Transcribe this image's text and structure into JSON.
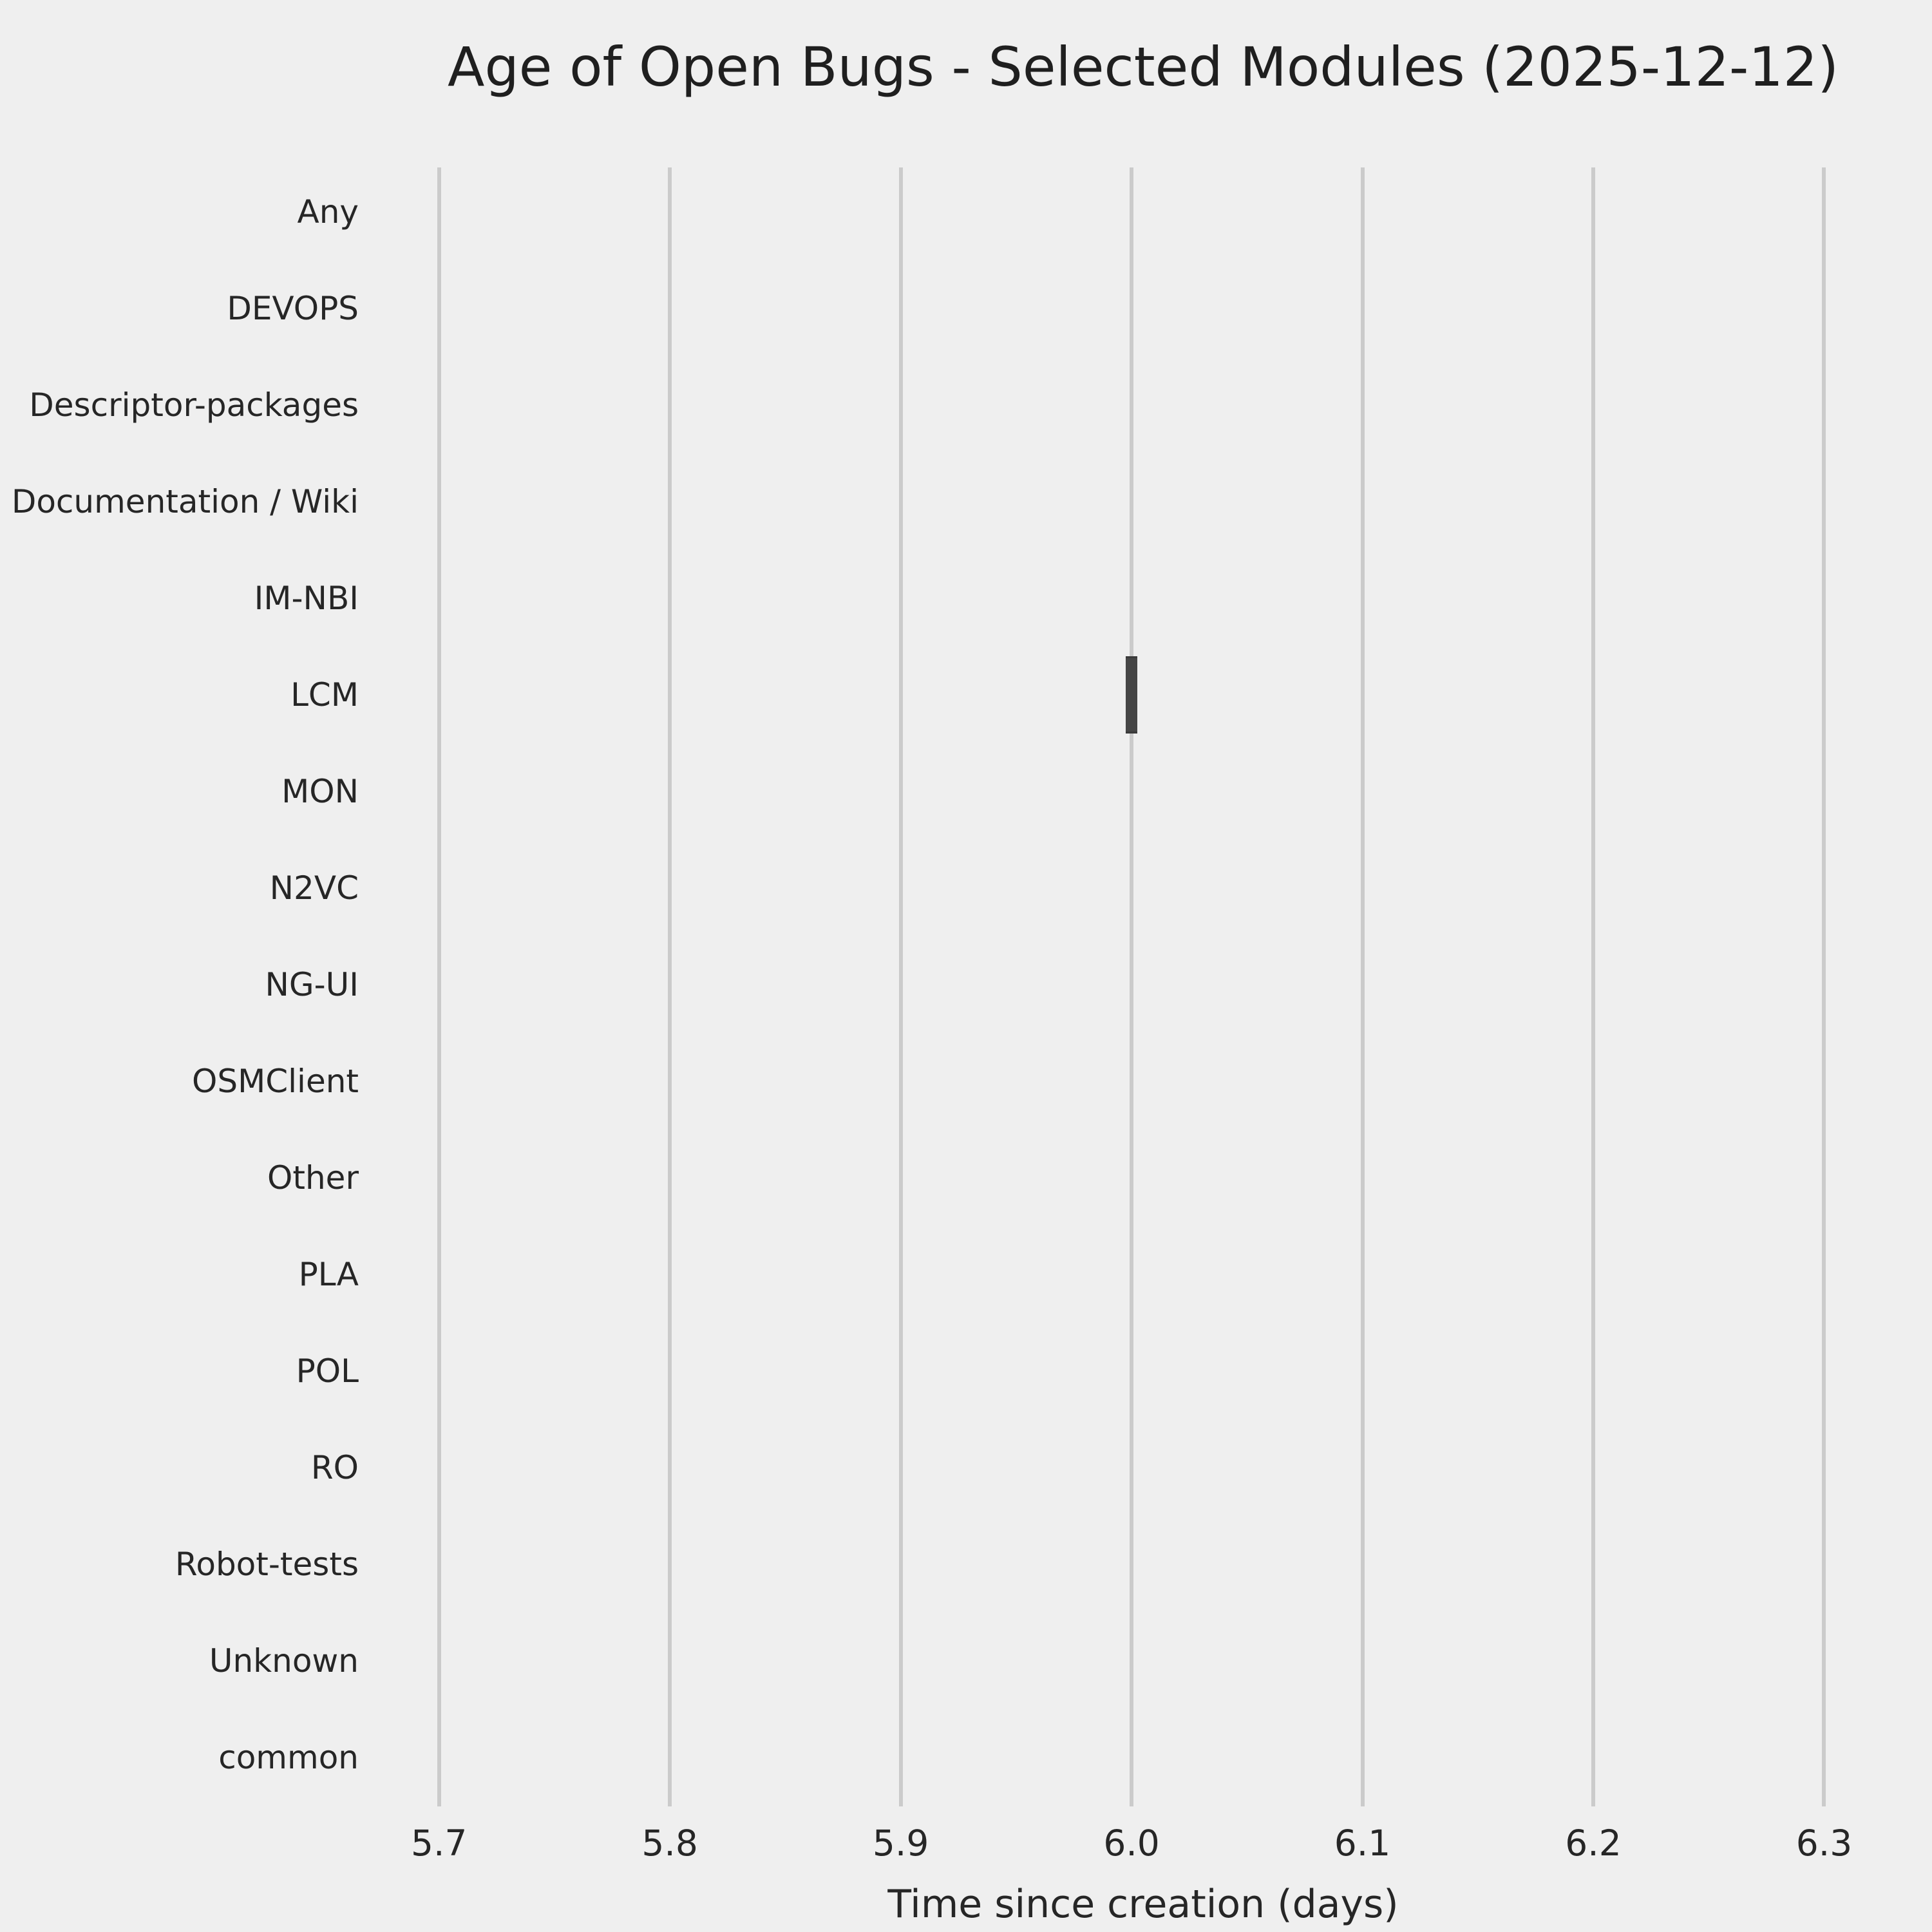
{
  "chart_data": {
    "type": "box",
    "orientation": "horizontal",
    "title": "Age of Open Bugs - Selected Modules (2025-12-12)",
    "xlabel": "Time since creation (days)",
    "ylabel": "",
    "categories": [
      "Any",
      "DEVOPS",
      "Descriptor-packages",
      "Documentation / Wiki",
      "IM-NBI",
      "LCM",
      "MON",
      "N2VC",
      "NG-UI",
      "OSMClient",
      "Other",
      "PLA",
      "POL",
      "RO",
      "Robot-tests",
      "Unknown",
      "common"
    ],
    "x_tick_labels": [
      "5.7",
      "5.8",
      "5.9",
      "6.0",
      "6.1",
      "6.2",
      "6.3"
    ],
    "xlim": [
      5.68,
      6.33
    ],
    "grid": "vertical-gridlines-only",
    "legend": "none",
    "boxes": [
      {
        "category": "LCM",
        "median": 6.0,
        "q1": 6.0,
        "q3": 6.0,
        "whisker_low": 6.0,
        "whisker_high": 6.0
      }
    ],
    "colors": {
      "background": "#efefef",
      "gridline": "#cbcbcb",
      "box_fill": "#454545",
      "box_edge": "#3a3a3a",
      "text": "#262626"
    }
  }
}
